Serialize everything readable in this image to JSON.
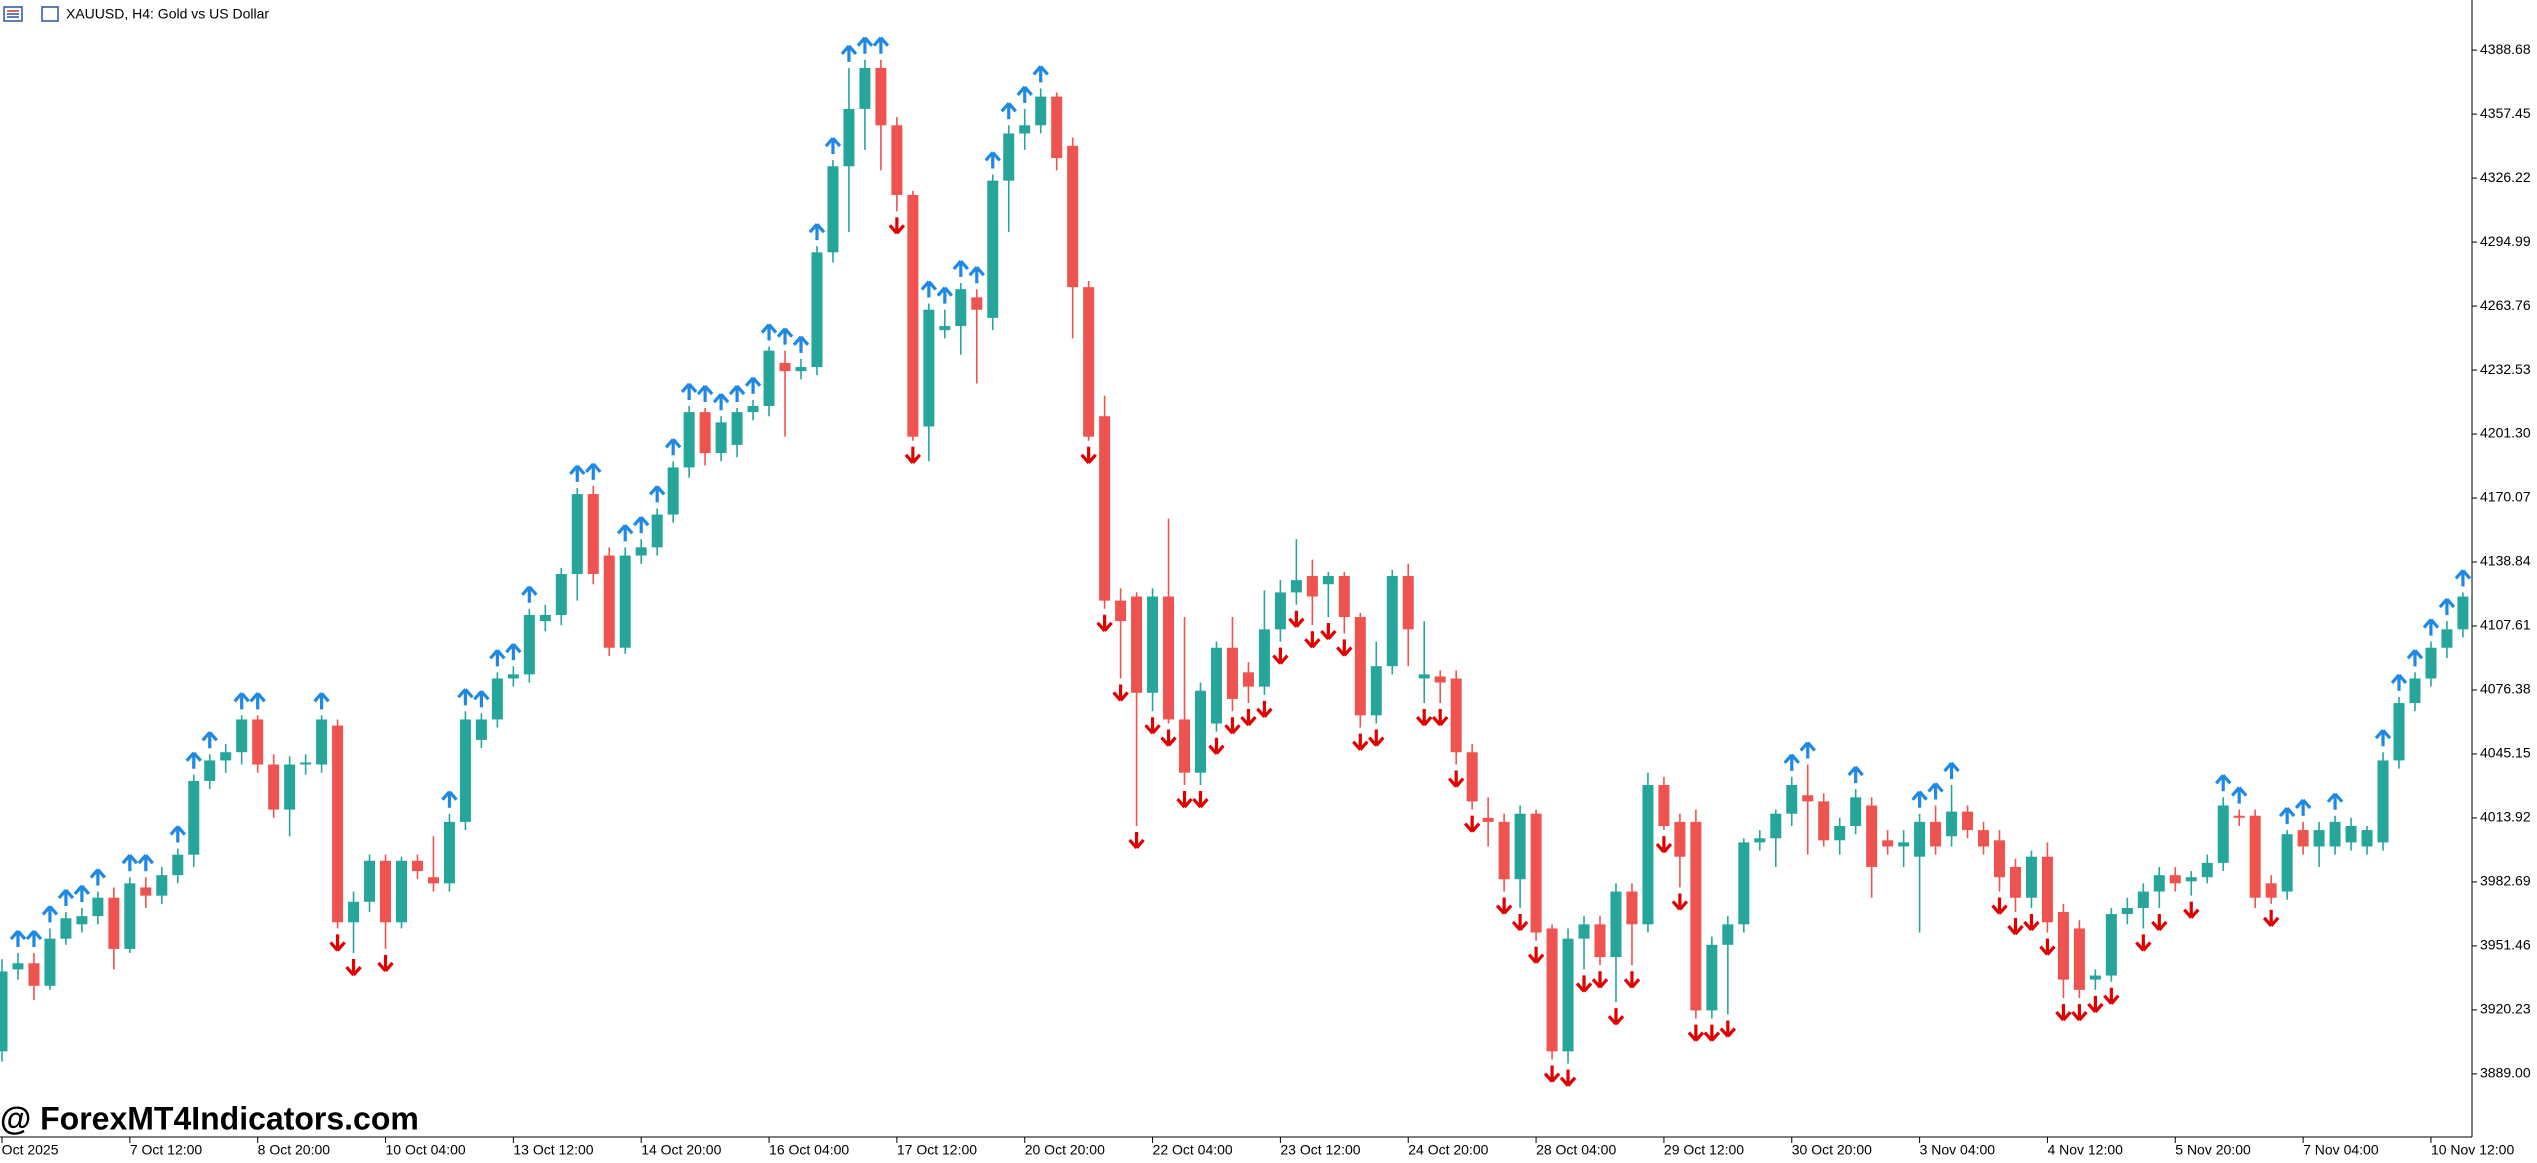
{
  "chart_data": {
    "type": "candlestick",
    "title": "XAUUSD, H4:  Gold vs US Dollar",
    "watermark": "@ ForexMT4Indicators.com",
    "up_color": "#26a69a",
    "down_color": "#ef5350",
    "signal_up_color": "#1e88e5",
    "signal_down_color": "#e00000",
    "ylim": [
      3858.2,
      4413.15
    ],
    "yticks": [
      {
        "value": 3889,
        "label": "3889.00"
      },
      3920.23,
      3951.46,
      3982.69,
      4013.92,
      4045.15,
      4076.38,
      4107.61,
      4138.84,
      4170.07,
      {
        "value": 4201.3,
        "label": "4201.30"
      },
      4232.53,
      4263.76,
      4294.99,
      4326.22,
      4357.45,
      4388.68
    ],
    "xticks": [
      {
        "value": 0,
        "label": "5 Oct 2025"
      },
      {
        "value": 8,
        "label": "7 Oct 12:00"
      },
      {
        "value": 16,
        "label": "8 Oct 20:00"
      },
      {
        "value": 24,
        "label": "10 Oct 04:00"
      },
      {
        "value": 32,
        "label": "13 Oct 12:00"
      },
      {
        "value": 40,
        "label": "14 Oct 20:00"
      },
      {
        "value": 48,
        "label": "16 Oct 04:00"
      },
      {
        "value": 56,
        "label": "17 Oct 12:00"
      },
      {
        "value": 64,
        "label": "20 Oct 20:00"
      },
      {
        "value": 72,
        "label": "22 Oct 04:00"
      },
      {
        "value": 80,
        "label": "23 Oct 12:00"
      },
      {
        "value": 88,
        "label": "24 Oct 20:00"
      },
      {
        "value": 96,
        "label": "28 Oct 04:00"
      },
      {
        "value": 104,
        "label": "29 Oct 12:00"
      },
      {
        "value": 112,
        "label": "30 Oct 20:00"
      },
      {
        "value": 120,
        "label": "3 Nov 04:00"
      },
      {
        "value": 128,
        "label": "4 Nov 12:00"
      },
      {
        "value": 136,
        "label": "5 Nov 20:00"
      },
      {
        "value": 144,
        "label": "7 Nov 04:00"
      },
      {
        "value": 152,
        "label": "10 Nov 12:00"
      }
    ],
    "ohlc": [
      [
        3900,
        3945,
        3895,
        3939
      ],
      [
        3940,
        3948,
        3935,
        3943
      ],
      [
        3943,
        3948,
        3925,
        3932
      ],
      [
        3932,
        3960,
        3930,
        3955
      ],
      [
        3955,
        3968,
        3952,
        3965
      ],
      [
        3962,
        3970,
        3958,
        3966
      ],
      [
        3966,
        3978,
        3962,
        3975
      ],
      [
        3975,
        3980,
        3940,
        3950
      ],
      [
        3950,
        3985,
        3948,
        3982
      ],
      [
        3980,
        3985,
        3970,
        3976
      ],
      [
        3976,
        3990,
        3972,
        3986
      ],
      [
        3986,
        3999,
        3982,
        3996
      ],
      [
        3996,
        4035,
        3990,
        4032
      ],
      [
        4032,
        4045,
        4028,
        4042
      ],
      [
        4042,
        4050,
        4036,
        4046
      ],
      [
        4046,
        4064,
        4040,
        4062
      ],
      [
        4062,
        4064,
        4036,
        4040
      ],
      [
        4040,
        4045,
        4014,
        4018
      ],
      [
        4018,
        4044,
        4005,
        4040
      ],
      [
        4040,
        4045,
        4035,
        4041
      ],
      [
        4040,
        4064,
        4036,
        4062
      ],
      [
        4059,
        4062,
        3960,
        3963
      ],
      [
        3963,
        3978,
        3948,
        3973
      ],
      [
        3973,
        3996,
        3968,
        3993
      ],
      [
        3993,
        3996,
        3950,
        3963
      ],
      [
        3963,
        3995,
        3960,
        3993
      ],
      [
        3993,
        3996,
        3984,
        3988
      ],
      [
        3985,
        4005,
        3978,
        3982
      ],
      [
        3982,
        4016,
        3978,
        4012
      ],
      [
        4012,
        4066,
        4008,
        4062
      ],
      [
        4052,
        4065,
        4048,
        4062
      ],
      [
        4062,
        4085,
        4058,
        4082
      ],
      [
        4082,
        4088,
        4078,
        4084
      ],
      [
        4084,
        4116,
        4080,
        4113
      ],
      [
        4110,
        4118,
        4105,
        4113
      ],
      [
        4113,
        4136,
        4108,
        4133
      ],
      [
        4133,
        4175,
        4120,
        4172
      ],
      [
        4172,
        4176,
        4128,
        4133
      ],
      [
        4142,
        4146,
        4093,
        4097
      ],
      [
        4097,
        4146,
        4094,
        4142
      ],
      [
        4142,
        4150,
        4138,
        4146
      ],
      [
        4146,
        4165,
        4142,
        4162
      ],
      [
        4162,
        4188,
        4158,
        4185
      ],
      [
        4185,
        4215,
        4180,
        4212
      ],
      [
        4212,
        4214,
        4186,
        4192
      ],
      [
        4192,
        4210,
        4188,
        4207
      ],
      [
        4196,
        4214,
        4190,
        4212
      ],
      [
        4212,
        4218,
        4208,
        4215
      ],
      [
        4215,
        4244,
        4210,
        4242
      ],
      [
        4236,
        4242,
        4200,
        4232
      ],
      [
        4232,
        4238,
        4228,
        4234
      ],
      [
        4234,
        4293,
        4230,
        4290
      ],
      [
        4290,
        4335,
        4285,
        4332
      ],
      [
        4332,
        4380,
        4300,
        4360
      ],
      [
        4360,
        4384,
        4340,
        4380
      ],
      [
        4380,
        4384,
        4330,
        4352
      ],
      [
        4352,
        4356,
        4310,
        4318
      ],
      [
        4318,
        4320,
        4198,
        4200
      ],
      [
        4205,
        4265,
        4188,
        4262
      ],
      [
        4252,
        4262,
        4248,
        4254
      ],
      [
        4254,
        4275,
        4240,
        4272
      ],
      [
        4268,
        4272,
        4226,
        4262
      ],
      [
        4258,
        4328,
        4252,
        4325
      ],
      [
        4325,
        4352,
        4300,
        4348
      ],
      [
        4348,
        4360,
        4340,
        4352
      ],
      [
        4352,
        4370,
        4348,
        4366
      ],
      [
        4366,
        4368,
        4330,
        4336
      ],
      [
        4342,
        4346,
        4248,
        4273
      ],
      [
        4273,
        4276,
        4198,
        4200
      ],
      [
        4210,
        4220,
        4116,
        4120
      ],
      [
        4120,
        4126,
        4082,
        4110
      ],
      [
        4122,
        4124,
        4010,
        4075
      ],
      [
        4075,
        4126,
        4066,
        4122
      ],
      [
        4122,
        4160,
        4060,
        4062
      ],
      [
        4062,
        4112,
        4030,
        4036
      ],
      [
        4036,
        4080,
        4030,
        4076
      ],
      [
        4060,
        4100,
        4056,
        4097
      ],
      [
        4097,
        4112,
        4066,
        4072
      ],
      [
        4085,
        4090,
        4070,
        4078
      ],
      [
        4078,
        4125,
        4074,
        4106
      ],
      [
        4106,
        4130,
        4100,
        4124
      ],
      [
        4124,
        4150,
        4118,
        4130
      ],
      [
        4132,
        4140,
        4108,
        4122
      ],
      [
        4128,
        4134,
        4112,
        4132
      ],
      [
        4132,
        4134,
        4104,
        4112
      ],
      [
        4112,
        4114,
        4058,
        4064
      ],
      [
        4064,
        4100,
        4060,
        4088
      ],
      [
        4088,
        4135,
        4084,
        4132
      ],
      [
        4132,
        4138,
        4088,
        4106
      ],
      [
        4082,
        4110,
        4070,
        4084
      ],
      [
        4083,
        4086,
        4070,
        4080
      ],
      [
        4082,
        4086,
        4040,
        4046
      ],
      [
        4046,
        4050,
        4018,
        4022
      ],
      [
        4014,
        4024,
        4000,
        4012
      ],
      [
        4012,
        4016,
        3978,
        3984
      ],
      [
        3984,
        4020,
        3970,
        4016
      ],
      [
        4016,
        4018,
        3954,
        3958
      ],
      [
        3960,
        3962,
        3896,
        3900
      ],
      [
        3900,
        3960,
        3894,
        3955
      ],
      [
        3955,
        3966,
        3940,
        3962
      ],
      [
        3962,
        3966,
        3942,
        3946
      ],
      [
        3946,
        3982,
        3924,
        3978
      ],
      [
        3978,
        3982,
        3942,
        3962
      ],
      [
        3962,
        4036,
        3958,
        4030
      ],
      [
        4030,
        4034,
        4008,
        4010
      ],
      [
        4012,
        4016,
        3980,
        3995
      ],
      [
        4012,
        4018,
        3916,
        3920
      ],
      [
        3920,
        3956,
        3916,
        3952
      ],
      [
        3952,
        3966,
        3918,
        3962
      ],
      [
        3962,
        4004,
        3958,
        4002
      ],
      [
        4002,
        4008,
        3998,
        4004
      ],
      [
        4004,
        4018,
        3990,
        4016
      ],
      [
        4016,
        4034,
        4010,
        4030
      ],
      [
        4025,
        4040,
        3996,
        4022
      ],
      [
        4022,
        4026,
        4000,
        4003
      ],
      [
        4003,
        4014,
        3996,
        4010
      ],
      [
        4010,
        4028,
        4006,
        4024
      ],
      [
        4020,
        4024,
        3975,
        3990
      ],
      [
        4003,
        4008,
        3996,
        4000
      ],
      [
        4000,
        4008,
        3990,
        4002
      ],
      [
        3995,
        4016,
        3958,
        4012
      ],
      [
        4012,
        4020,
        3996,
        4000
      ],
      [
        4005,
        4030,
        4000,
        4017
      ],
      [
        4017,
        4020,
        4004,
        4008
      ],
      [
        4008,
        4012,
        3996,
        4000
      ],
      [
        4003,
        4008,
        3978,
        3985
      ],
      [
        3990,
        3994,
        3968,
        3975
      ],
      [
        3975,
        3998,
        3970,
        3995
      ],
      [
        3995,
        4002,
        3958,
        3963
      ],
      [
        3968,
        3972,
        3926,
        3935
      ],
      [
        3960,
        3964,
        3926,
        3930
      ],
      [
        3935,
        3940,
        3930,
        3937
      ],
      [
        3937,
        3970,
        3934,
        3967
      ],
      [
        3967,
        3975,
        3962,
        3970
      ],
      [
        3970,
        3982,
        3960,
        3978
      ],
      [
        3978,
        3990,
        3970,
        3986
      ],
      [
        3986,
        3990,
        3978,
        3982
      ],
      [
        3983,
        3988,
        3976,
        3985
      ],
      [
        3985,
        3996,
        3982,
        3992
      ],
      [
        3992,
        4024,
        3988,
        4020
      ],
      [
        4015,
        4018,
        4010,
        4014
      ],
      [
        4015,
        4018,
        3970,
        3975
      ],
      [
        3982,
        3986,
        3972,
        3975
      ],
      [
        3978,
        4008,
        3974,
        4006
      ],
      [
        4008,
        4012,
        3996,
        4000
      ],
      [
        4000,
        4012,
        3990,
        4008
      ],
      [
        4000,
        4015,
        3996,
        4012
      ],
      [
        4002,
        4014,
        3998,
        4010
      ],
      [
        4000,
        4010,
        3996,
        4008
      ],
      [
        4002,
        4046,
        3998,
        4042
      ],
      [
        4042,
        4073,
        4038,
        4070
      ],
      [
        4070,
        4085,
        4066,
        4082
      ],
      [
        4082,
        4100,
        4078,
        4097
      ],
      [
        4097,
        4110,
        4092,
        4106
      ],
      [
        4106,
        4124,
        4102,
        4122
      ]
    ],
    "signals": [
      null,
      "up",
      "up",
      "up",
      "up",
      "up",
      "up",
      null,
      "up",
      "up",
      null,
      "up",
      "up",
      "up",
      null,
      "up",
      "up",
      null,
      null,
      null,
      "up",
      "down",
      "down",
      null,
      "down",
      null,
      null,
      null,
      "up",
      "up",
      "up",
      "up",
      "up",
      "up",
      null,
      null,
      "up",
      "up",
      null,
      "up",
      "up",
      "up",
      "up",
      "up",
      "up",
      "up",
      "up",
      "up",
      "up",
      "up",
      "up",
      "up",
      "up",
      "up",
      "up",
      "up",
      "down",
      "down",
      "up",
      "up",
      "up",
      "up",
      "up",
      "up",
      "up",
      "up",
      null,
      null,
      "down",
      "down",
      "down",
      "down",
      "down",
      "down",
      "down",
      "down",
      "down",
      "down",
      "down",
      "down",
      "down",
      "down",
      "down",
      "down",
      "down",
      "down",
      "down",
      null,
      null,
      "down",
      "down",
      "down",
      "down",
      null,
      "down",
      "down",
      "down",
      "down",
      "down",
      "down",
      "down",
      "down",
      "down",
      null,
      "down",
      "down",
      "down",
      "down",
      "down",
      null,
      null,
      null,
      "up",
      "up",
      null,
      null,
      "up",
      null,
      null,
      null,
      "up",
      "up",
      "up",
      null,
      null,
      "down",
      "down",
      "down",
      "down",
      "down",
      "down",
      "down",
      "down",
      null,
      "down",
      "down",
      null,
      "down",
      null,
      "up",
      "up",
      null,
      "down",
      "up",
      "up",
      null,
      "up",
      null,
      null,
      "up",
      "up",
      "up",
      "up",
      "up",
      "up"
    ]
  }
}
